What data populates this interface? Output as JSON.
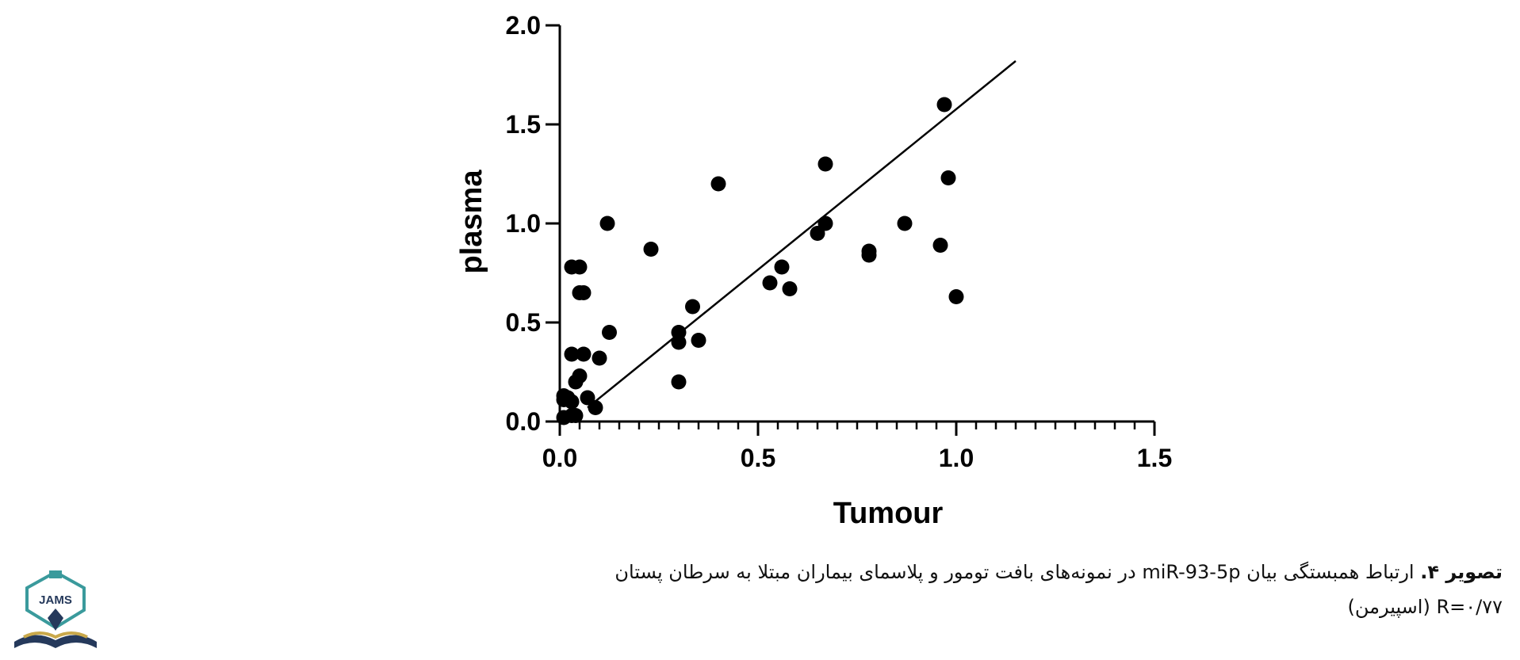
{
  "chart_data": {
    "type": "scatter",
    "xlabel": "Tumour",
    "ylabel": "plasma",
    "xlim": [
      0,
      1.5
    ],
    "ylim": [
      0,
      2.0
    ],
    "x_ticks": [
      "0.0",
      "0.5",
      "1.0",
      "1.5"
    ],
    "y_ticks": [
      "0.0",
      "0.5",
      "1.0",
      "1.5",
      "2.0"
    ],
    "x_minor_step": 0.05,
    "grid": false,
    "point_color": "#000000",
    "points": [
      [
        0.01,
        0.02
      ],
      [
        0.01,
        0.11
      ],
      [
        0.01,
        0.13
      ],
      [
        0.02,
        0.12
      ],
      [
        0.03,
        0.1
      ],
      [
        0.03,
        0.03
      ],
      [
        0.04,
        0.03
      ],
      [
        0.03,
        0.34
      ],
      [
        0.03,
        0.78
      ],
      [
        0.05,
        0.78
      ],
      [
        0.05,
        0.65
      ],
      [
        0.06,
        0.65
      ],
      [
        0.06,
        0.34
      ],
      [
        0.04,
        0.2
      ],
      [
        0.05,
        0.23
      ],
      [
        0.07,
        0.12
      ],
      [
        0.09,
        0.07
      ],
      [
        0.1,
        0.32
      ],
      [
        0.12,
        1.0
      ],
      [
        0.125,
        0.45
      ],
      [
        0.23,
        0.87
      ],
      [
        0.3,
        0.45
      ],
      [
        0.3,
        0.4
      ],
      [
        0.3,
        0.2
      ],
      [
        0.335,
        0.58
      ],
      [
        0.35,
        0.41
      ],
      [
        0.4,
        1.2
      ],
      [
        0.53,
        0.7
      ],
      [
        0.56,
        0.78
      ],
      [
        0.58,
        0.67
      ],
      [
        0.65,
        0.95
      ],
      [
        0.67,
        1.0
      ],
      [
        0.67,
        1.3
      ],
      [
        0.78,
        0.86
      ],
      [
        0.78,
        0.84
      ],
      [
        0.87,
        1.0
      ],
      [
        0.96,
        0.89
      ],
      [
        0.97,
        1.6
      ],
      [
        0.98,
        1.23
      ],
      [
        1.0,
        0.63
      ]
    ],
    "trendline": {
      "x": [
        0.07,
        1.15
      ],
      "y": [
        0.07,
        1.82
      ]
    }
  },
  "caption": {
    "label": "تصویر ۴.",
    "text_line1": " ارتباط همبستگی بیان miR-93-5p در نمونه‌های بافت تومور و پلاسمای بیماران مبتلا به سرطان پستان",
    "text_line2": "R=۰/۷۷ (اسپیرمن)"
  },
  "logo": {
    "text": "JAMS",
    "colors": {
      "teal": "#3a9a9c",
      "navy": "#25395b",
      "gold": "#c9a84a"
    }
  }
}
